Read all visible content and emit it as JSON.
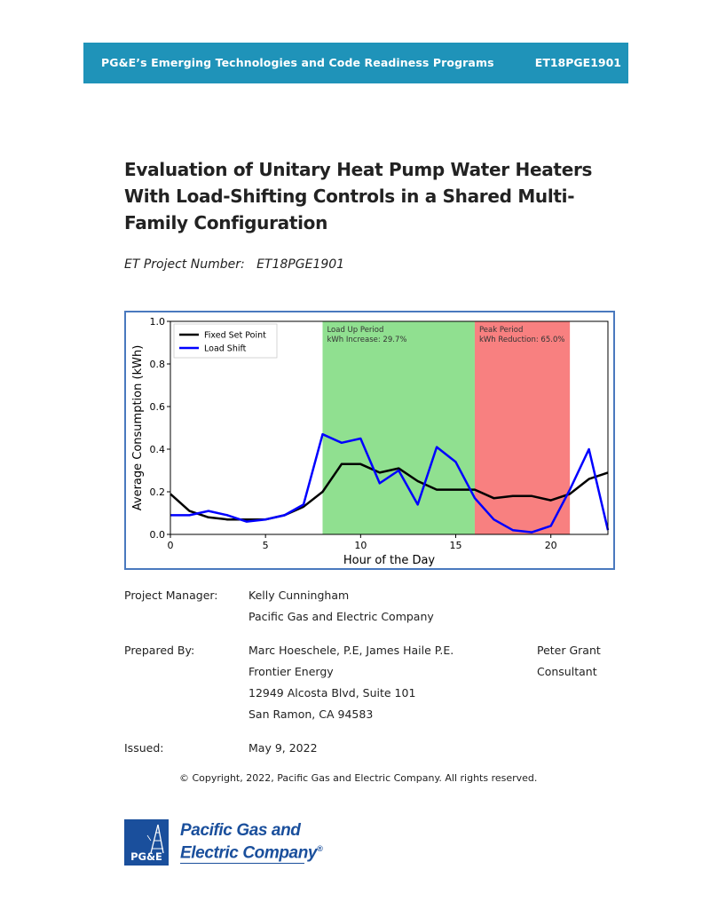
{
  "header": {
    "program": "PG&E’s Emerging Technologies and Code Readiness Programs",
    "code": "ET18PGE1901",
    "color": "#1f93b9"
  },
  "title": {
    "line1": "Evaluation of Unitary Heat Pump Water Heaters",
    "line2": "With Load-Shifting Controls in a Shared Multi-",
    "line3": "Family Configuration"
  },
  "project_number": {
    "label": "ET Project Number:",
    "value": "ET18PGE1901"
  },
  "chart_data": {
    "type": "line",
    "xlabel": "Hour of the Day",
    "ylabel": "Average Consumption (kWh)",
    "xlim": [
      0,
      23
    ],
    "ylim": [
      0.0,
      1.0
    ],
    "x_ticks": [
      "0",
      "5",
      "10",
      "15",
      "20"
    ],
    "y_ticks": [
      "0.0",
      "0.2",
      "0.4",
      "0.6",
      "0.8",
      "1.0"
    ],
    "legend_position": "top-left",
    "x": [
      0,
      1,
      2,
      3,
      4,
      5,
      6,
      7,
      8,
      9,
      10,
      11,
      12,
      13,
      14,
      15,
      16,
      17,
      18,
      19,
      20,
      21,
      22,
      23
    ],
    "series": [
      {
        "name": "Fixed Set Point",
        "color": "#000000",
        "values": [
          0.19,
          0.11,
          0.08,
          0.07,
          0.07,
          0.07,
          0.09,
          0.13,
          0.2,
          0.33,
          0.33,
          0.29,
          0.31,
          0.25,
          0.21,
          0.21,
          0.21,
          0.17,
          0.18,
          0.18,
          0.16,
          0.19,
          0.26,
          0.29
        ]
      },
      {
        "name": "Load Shift",
        "color": "#0000ff",
        "values": [
          0.09,
          0.09,
          0.11,
          0.09,
          0.06,
          0.07,
          0.09,
          0.14,
          0.47,
          0.43,
          0.45,
          0.24,
          0.3,
          0.14,
          0.41,
          0.34,
          0.17,
          0.07,
          0.02,
          0.01,
          0.04,
          0.21,
          0.4,
          0.02
        ]
      }
    ],
    "regions": [
      {
        "start": 8,
        "end": 16,
        "color": "#90e090",
        "label1": "Load Up Period",
        "label2": "kWh Increase: 29.7%"
      },
      {
        "start": 16,
        "end": 21,
        "color": "#f88080",
        "label1": "Peak Period",
        "label2": "kWh Reduction: 65.0%"
      }
    ]
  },
  "project_manager": {
    "label": "Project Manager:",
    "name": "Kelly Cunningham",
    "org": "Pacific Gas and Electric Company"
  },
  "prepared_by": {
    "label": "Prepared By:",
    "names": "Marc Hoeschele, P.E, James Haile P.E.",
    "org": "Frontier Energy",
    "address1": "12949 Alcosta Blvd, Suite 101",
    "address2": "San Ramon, CA 94583",
    "consultant_name": "Peter Grant",
    "consultant_role": "Consultant"
  },
  "issued": {
    "label": "Issued:",
    "date": "May 9, 2022"
  },
  "copyright": "© Copyright, 2022, Pacific Gas and Electric Company.  All rights reserved.",
  "logo": {
    "mark": "PG&E",
    "line1": "Pacific Gas and",
    "line2": "Electric Company",
    "trademark": "®",
    "color": "#1a4f9c"
  }
}
